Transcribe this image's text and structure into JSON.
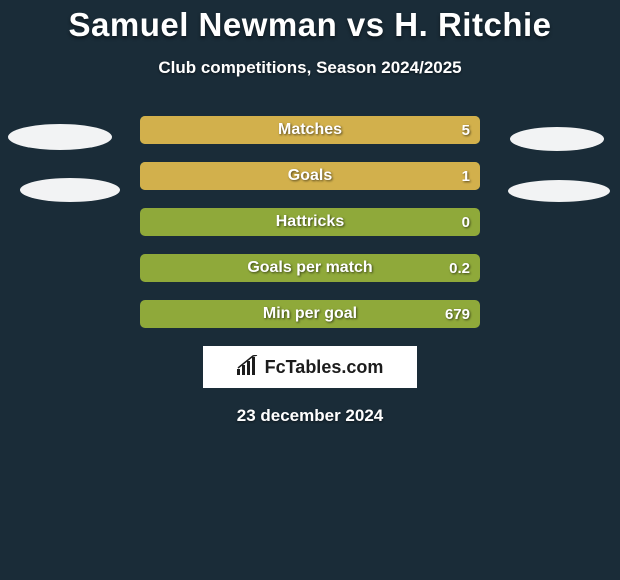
{
  "title": "Samuel Newman vs H. Ritchie",
  "subtitle": "Club competitions, Season 2024/2025",
  "background_color": "#1a2c38",
  "left_color": "#8fa93a",
  "right_color": "#d2b04c",
  "text_color": "#ffffff",
  "bars": [
    {
      "label": "Matches",
      "value": "5",
      "left_pct": 0,
      "right_pct": 100
    },
    {
      "label": "Goals",
      "value": "1",
      "left_pct": 0,
      "right_pct": 100
    },
    {
      "label": "Hattricks",
      "value": "0",
      "left_pct": 0,
      "right_pct": 0
    },
    {
      "label": "Goals per match",
      "value": "0.2",
      "left_pct": 0,
      "right_pct": 0
    },
    {
      "label": "Min per goal",
      "value": "679",
      "left_pct": 0,
      "right_pct": 0
    }
  ],
  "brand": "FcTables.com",
  "date": "23 december 2024"
}
